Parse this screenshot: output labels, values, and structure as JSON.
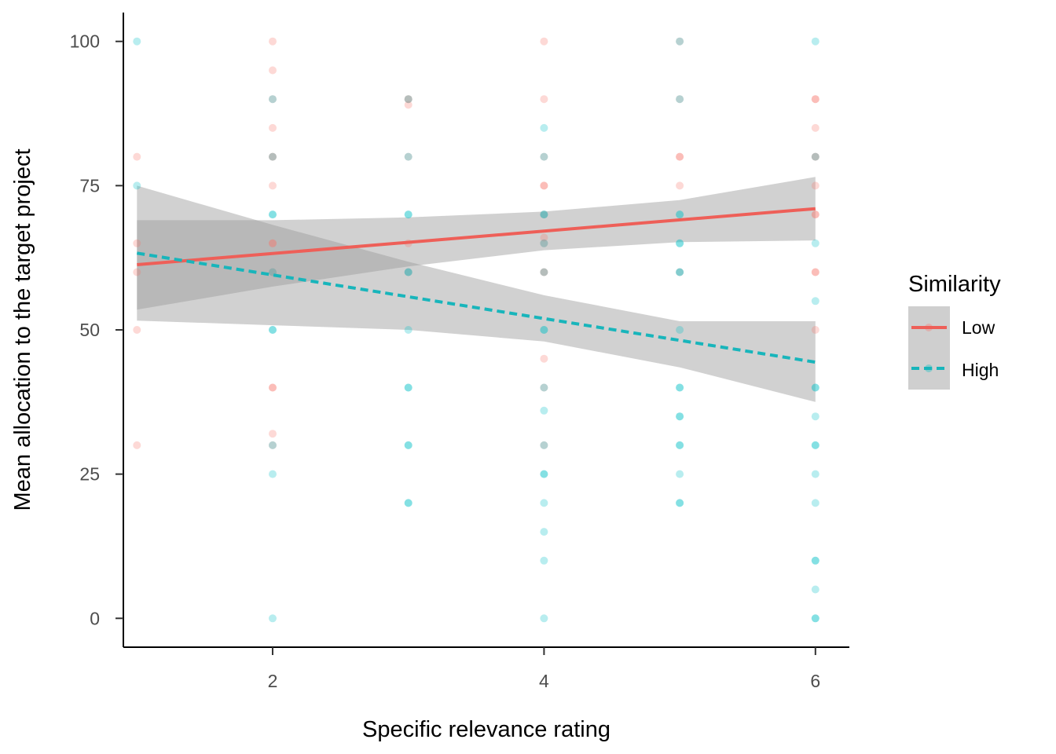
{
  "chart_data": {
    "type": "scatter",
    "xlabel": "Specific relevance rating",
    "ylabel": "Mean allocation to the target project",
    "xlim": [
      0.9,
      6.25
    ],
    "ylim": [
      -5,
      105
    ],
    "x_ticks": [
      2,
      4,
      6
    ],
    "y_ticks": [
      0,
      25,
      50,
      75,
      100
    ],
    "grid": false,
    "legend": {
      "title": "Similarity",
      "placement": "right"
    },
    "series": [
      {
        "name": "Low",
        "color": "#F8766D",
        "line_color": "#EE5F58",
        "line_style": "solid",
        "points": [
          [
            1,
            80
          ],
          [
            1,
            65
          ],
          [
            1,
            60
          ],
          [
            1,
            50
          ],
          [
            1,
            30
          ],
          [
            2,
            100
          ],
          [
            2,
            95
          ],
          [
            2,
            90
          ],
          [
            2,
            85
          ],
          [
            2,
            80
          ],
          [
            2,
            80
          ],
          [
            2,
            75
          ],
          [
            2,
            65
          ],
          [
            2,
            65
          ],
          [
            2,
            60
          ],
          [
            2,
            40
          ],
          [
            2,
            40
          ],
          [
            2,
            32
          ],
          [
            2,
            30
          ],
          [
            3,
            90
          ],
          [
            3,
            90
          ],
          [
            3,
            89
          ],
          [
            3,
            80
          ],
          [
            3,
            65
          ],
          [
            3,
            60
          ],
          [
            4,
            100
          ],
          [
            4,
            90
          ],
          [
            4,
            80
          ],
          [
            4,
            75
          ],
          [
            4,
            75
          ],
          [
            4,
            70
          ],
          [
            4,
            66
          ],
          [
            4,
            65
          ],
          [
            4,
            60
          ],
          [
            4,
            60
          ],
          [
            4,
            45
          ],
          [
            4,
            40
          ],
          [
            4,
            30
          ],
          [
            5,
            100
          ],
          [
            5,
            90
          ],
          [
            5,
            80
          ],
          [
            5,
            80
          ],
          [
            5,
            75
          ],
          [
            5,
            60
          ],
          [
            6,
            90
          ],
          [
            6,
            90
          ],
          [
            6,
            85
          ],
          [
            6,
            80
          ],
          [
            6,
            80
          ],
          [
            6,
            75
          ],
          [
            6,
            70
          ],
          [
            6,
            70
          ],
          [
            6,
            60
          ],
          [
            6,
            60
          ],
          [
            6,
            50
          ]
        ],
        "fit": {
          "x": [
            1,
            6
          ],
          "y": [
            61.3,
            71.0
          ]
        },
        "ci_upper": [
          [
            1,
            69.0
          ],
          [
            2,
            69.0
          ],
          [
            3,
            69.5
          ],
          [
            4,
            70.5
          ],
          [
            5,
            72.5
          ],
          [
            6,
            76.5
          ]
        ],
        "ci_lower": [
          [
            1,
            53.5
          ],
          [
            2,
            57.5
          ],
          [
            3,
            61.0
          ],
          [
            4,
            63.8
          ],
          [
            5,
            65.2
          ],
          [
            6,
            65.5
          ]
        ]
      },
      {
        "name": "High",
        "color": "#00BFC4",
        "line_color": "#18B5BB",
        "line_style": "dashed",
        "points": [
          [
            1,
            100
          ],
          [
            1,
            75
          ],
          [
            2,
            90
          ],
          [
            2,
            80
          ],
          [
            2,
            70
          ],
          [
            2,
            70
          ],
          [
            2,
            60
          ],
          [
            2,
            50
          ],
          [
            2,
            50
          ],
          [
            2,
            30
          ],
          [
            2,
            25
          ],
          [
            2,
            0
          ],
          [
            3,
            90
          ],
          [
            3,
            80
          ],
          [
            3,
            70
          ],
          [
            3,
            70
          ],
          [
            3,
            60
          ],
          [
            3,
            60
          ],
          [
            3,
            50
          ],
          [
            3,
            40
          ],
          [
            3,
            40
          ],
          [
            3,
            30
          ],
          [
            3,
            30
          ],
          [
            3,
            20
          ],
          [
            3,
            20
          ],
          [
            4,
            85
          ],
          [
            4,
            80
          ],
          [
            4,
            70
          ],
          [
            4,
            70
          ],
          [
            4,
            65
          ],
          [
            4,
            60
          ],
          [
            4,
            50
          ],
          [
            4,
            50
          ],
          [
            4,
            40
          ],
          [
            4,
            36
          ],
          [
            4,
            30
          ],
          [
            4,
            25
          ],
          [
            4,
            25
          ],
          [
            4,
            20
          ],
          [
            4,
            15
          ],
          [
            4,
            10
          ],
          [
            4,
            0
          ],
          [
            5,
            100
          ],
          [
            5,
            90
          ],
          [
            5,
            70
          ],
          [
            5,
            70
          ],
          [
            5,
            65
          ],
          [
            5,
            65
          ],
          [
            5,
            60
          ],
          [
            5,
            60
          ],
          [
            5,
            50
          ],
          [
            5,
            40
          ],
          [
            5,
            40
          ],
          [
            5,
            35
          ],
          [
            5,
            35
          ],
          [
            5,
            30
          ],
          [
            5,
            30
          ],
          [
            5,
            25
          ],
          [
            5,
            20
          ],
          [
            5,
            20
          ],
          [
            6,
            100
          ],
          [
            6,
            80
          ],
          [
            6,
            65
          ],
          [
            6,
            55
          ],
          [
            6,
            40
          ],
          [
            6,
            40
          ],
          [
            6,
            35
          ],
          [
            6,
            30
          ],
          [
            6,
            30
          ],
          [
            6,
            25
          ],
          [
            6,
            20
          ],
          [
            6,
            10
          ],
          [
            6,
            10
          ],
          [
            6,
            5
          ],
          [
            6,
            0
          ],
          [
            6,
            0
          ]
        ],
        "fit": {
          "x": [
            1,
            6
          ],
          "y": [
            63.3,
            44.4
          ]
        },
        "ci_upper": [
          [
            1,
            75.0
          ],
          [
            2,
            68.2
          ],
          [
            3,
            61.8
          ],
          [
            4,
            56.0
          ],
          [
            5,
            51.5
          ],
          [
            6,
            51.5
          ]
        ],
        "ci_lower": [
          [
            1,
            51.6
          ],
          [
            2,
            50.8
          ],
          [
            3,
            50.0
          ],
          [
            4,
            48.0
          ],
          [
            5,
            43.5
          ],
          [
            6,
            37.5
          ]
        ]
      }
    ]
  }
}
